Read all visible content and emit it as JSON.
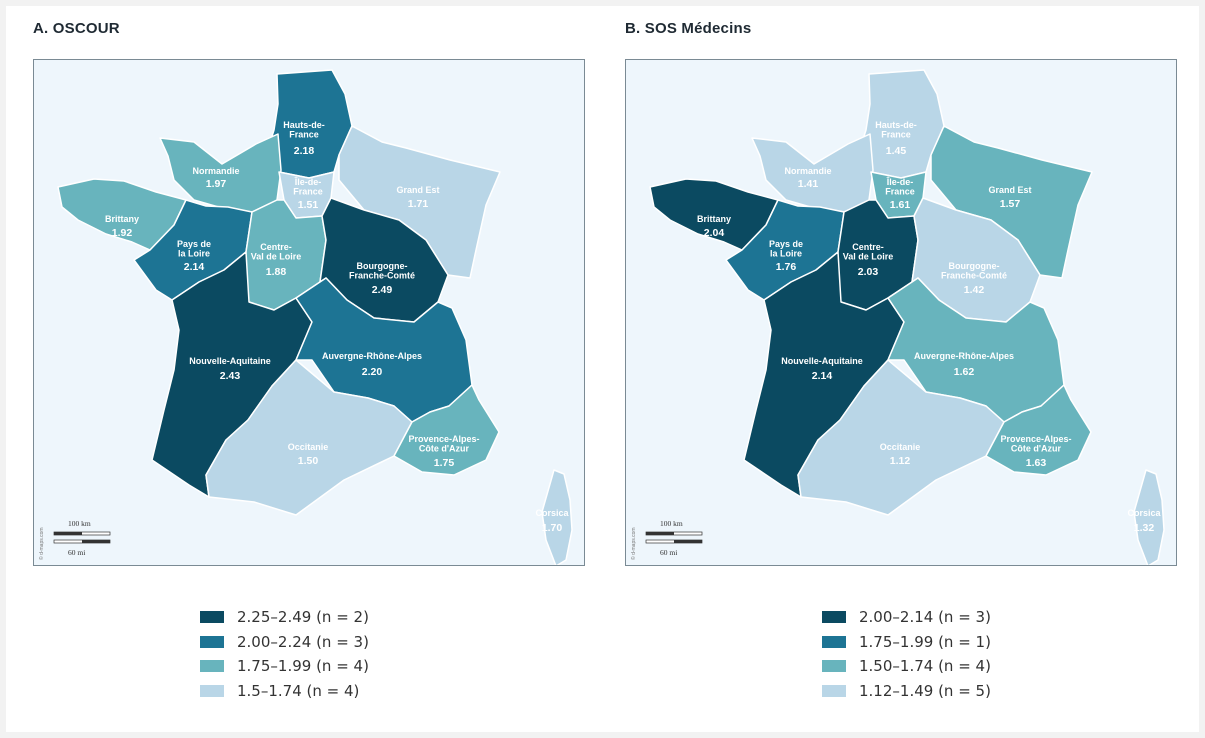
{
  "colors": {
    "c1": "#0b4a61",
    "c2": "#1d7494",
    "c3": "#68b4bd",
    "c4": "#b9d6e7"
  },
  "panels": [
    {
      "title": "A. OSCOUR",
      "credit": "© d-maps.com",
      "scale": {
        "km": "100 km",
        "mi": "60 mi"
      },
      "regions": [
        {
          "id": "hdf",
          "lines": [
            "Hauts-de-",
            "France"
          ],
          "value": "2.18",
          "color": "#1d7494"
        },
        {
          "id": "nor",
          "lines": [
            "Normandie"
          ],
          "value": "1.97",
          "color": "#68b4bd"
        },
        {
          "id": "idf",
          "lines": [
            "Île-de-",
            "France"
          ],
          "value": "1.51",
          "color": "#b9d6e7"
        },
        {
          "id": "ge",
          "lines": [
            "Grand Est"
          ],
          "value": "1.71",
          "color": "#b9d6e7"
        },
        {
          "id": "bre",
          "lines": [
            "Brittany"
          ],
          "value": "1.92",
          "color": "#68b4bd"
        },
        {
          "id": "pdl",
          "lines": [
            "Pays de",
            "la Loire"
          ],
          "value": "2.14",
          "color": "#1d7494"
        },
        {
          "id": "cvl",
          "lines": [
            "Centre-",
            "Val de Loire"
          ],
          "value": "1.88",
          "color": "#68b4bd"
        },
        {
          "id": "bfc",
          "lines": [
            "Bourgogne-",
            "Franche-Comté"
          ],
          "value": "2.49",
          "color": "#0b4a61"
        },
        {
          "id": "na",
          "lines": [
            "Nouvelle-Aquitaine"
          ],
          "value": "2.43",
          "color": "#0b4a61"
        },
        {
          "id": "ara",
          "lines": [
            "Auvergne-Rhône-Alpes"
          ],
          "value": "2.20",
          "color": "#1d7494"
        },
        {
          "id": "occ",
          "lines": [
            "Occitanie"
          ],
          "value": "1.50",
          "color": "#b9d6e7"
        },
        {
          "id": "paca",
          "lines": [
            "Provence-Alpes-",
            "Côte d'Azur"
          ],
          "value": "1.75",
          "color": "#68b4bd"
        },
        {
          "id": "cor",
          "lines": [
            "Corsica"
          ],
          "value": "1.70",
          "color": "#b9d6e7"
        }
      ],
      "legend": [
        {
          "label": "2.25–2.49 (n = 2)",
          "color": "#0b4a61"
        },
        {
          "label": "2.00–2.24 (n = 3)",
          "color": "#1d7494"
        },
        {
          "label": "1.75–1.99 (n = 4)",
          "color": "#68b4bd"
        },
        {
          "label": "1.5–1.74 (n = 4)",
          "color": "#b9d6e7"
        }
      ]
    },
    {
      "title": "B. SOS Médecins",
      "credit": "© d-maps.com",
      "scale": {
        "km": "100 km",
        "mi": "60 mi"
      },
      "regions": [
        {
          "id": "hdf",
          "lines": [
            "Hauts-de-",
            "France"
          ],
          "value": "1.45",
          "color": "#b9d6e7"
        },
        {
          "id": "nor",
          "lines": [
            "Normandie"
          ],
          "value": "1.41",
          "color": "#b9d6e7"
        },
        {
          "id": "idf",
          "lines": [
            "Île-de-",
            "France"
          ],
          "value": "1.61",
          "color": "#68b4bd"
        },
        {
          "id": "ge",
          "lines": [
            "Grand Est"
          ],
          "value": "1.57",
          "color": "#68b4bd"
        },
        {
          "id": "bre",
          "lines": [
            "Brittany"
          ],
          "value": "2.04",
          "color": "#0b4a61"
        },
        {
          "id": "pdl",
          "lines": [
            "Pays de",
            "la Loire"
          ],
          "value": "1.76",
          "color": "#1d7494"
        },
        {
          "id": "cvl",
          "lines": [
            "Centre-",
            "Val de Loire"
          ],
          "value": "2.03",
          "color": "#0b4a61"
        },
        {
          "id": "bfc",
          "lines": [
            "Bourgogne-",
            "Franche-Comté"
          ],
          "value": "1.42",
          "color": "#b9d6e7"
        },
        {
          "id": "na",
          "lines": [
            "Nouvelle-Aquitaine"
          ],
          "value": "2.14",
          "color": "#0b4a61"
        },
        {
          "id": "ara",
          "lines": [
            "Auvergne-Rhône-Alpes"
          ],
          "value": "1.62",
          "color": "#68b4bd"
        },
        {
          "id": "occ",
          "lines": [
            "Occitanie"
          ],
          "value": "1.12",
          "color": "#b9d6e7"
        },
        {
          "id": "paca",
          "lines": [
            "Provence-Alpes-",
            "Côte d'Azur"
          ],
          "value": "1.63",
          "color": "#68b4bd"
        },
        {
          "id": "cor",
          "lines": [
            "Corsica"
          ],
          "value": "1.32",
          "color": "#b9d6e7"
        }
      ],
      "legend": [
        {
          "label": "2.00–2.14 (n = 3)",
          "color": "#0b4a61"
        },
        {
          "label": "1.75–1.99 (n = 1)",
          "color": "#1d7494"
        },
        {
          "label": "1.50–1.74 (n = 4)",
          "color": "#68b4bd"
        },
        {
          "label": "1.12–1.49 (n = 5)",
          "color": "#b9d6e7"
        }
      ]
    }
  ]
}
